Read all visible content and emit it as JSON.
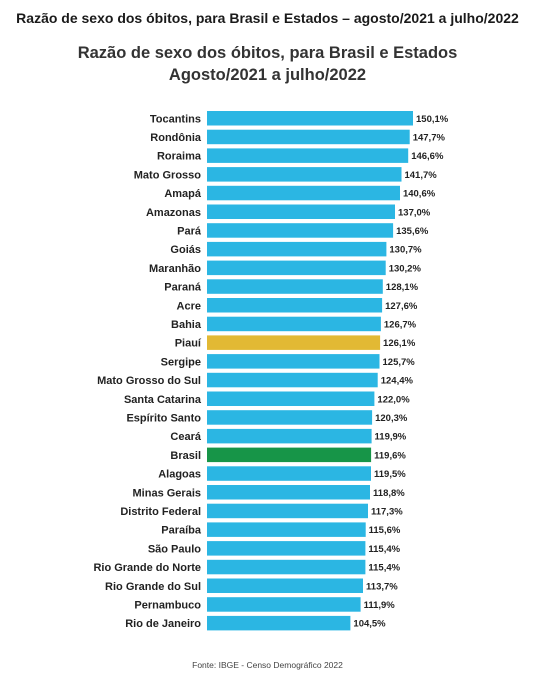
{
  "header": {
    "title": "Razão de sexo dos óbitos, para Brasil e Estados – agosto/2021 a julho/2022"
  },
  "chart_data": {
    "type": "bar",
    "orientation": "horizontal",
    "title_line1": "Razão de sexo dos óbitos, para Brasil e Estados",
    "title_line2": "Agosto/2021 a julho/2022",
    "categories": [
      "Tocantins",
      "Rondônia",
      "Roraima",
      "Mato Grosso",
      "Amapá",
      "Amazonas",
      "Pará",
      "Goiás",
      "Maranhão",
      "Paraná",
      "Acre",
      "Bahia",
      "Piauí",
      "Sergipe",
      "Mato Grosso do Sul",
      "Santa Catarina",
      "Espírito Santo",
      "Ceará",
      "Brasil",
      "Alagoas",
      "Minas Gerais",
      "Distrito Federal",
      "Paraíba",
      "São Paulo",
      "Rio Grande do Norte",
      "Rio Grande do Sul",
      "Pernambuco",
      "Rio de Janeiro"
    ],
    "values": [
      150.1,
      147.7,
      146.6,
      141.7,
      140.6,
      137.0,
      135.6,
      130.7,
      130.2,
      128.1,
      127.6,
      126.7,
      126.1,
      125.7,
      124.4,
      122.0,
      120.3,
      119.9,
      119.6,
      119.5,
      118.8,
      117.3,
      115.6,
      115.4,
      115.4,
      113.7,
      111.9,
      104.5
    ],
    "value_labels": [
      "150,1%",
      "147,7%",
      "146,6%",
      "141,7%",
      "140,6%",
      "137,0%",
      "135,6%",
      "130,7%",
      "130,2%",
      "128,1%",
      "127,6%",
      "126,7%",
      "126,1%",
      "125,7%",
      "124,4%",
      "122,0%",
      "120,3%",
      "119,9%",
      "119,6%",
      "119,5%",
      "118,8%",
      "117,3%",
      "115,6%",
      "115,4%",
      "115,4%",
      "113,7%",
      "111,9%",
      "104,5%"
    ],
    "colors": {
      "default": "#2bb6e3",
      "Piauí": "#e2b934",
      "Brasil": "#179548"
    }
  },
  "footer": {
    "source": "Fonte: IBGE - Censo Demográfico 2022"
  }
}
